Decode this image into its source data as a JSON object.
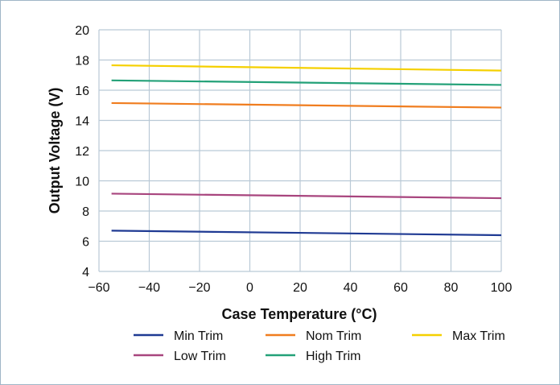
{
  "chart_data": {
    "type": "line",
    "xlabel": "Case Temperature (°C)",
    "ylabel": "Output Voltage (V)",
    "xlim": [
      -60,
      100
    ],
    "ylim": [
      4,
      20
    ],
    "x_ticks": [
      "−60",
      "−40",
      "−20",
      "0",
      "20",
      "40",
      "60",
      "80",
      "100"
    ],
    "y_ticks": [
      "4",
      "6",
      "8",
      "10",
      "12",
      "14",
      "16",
      "18",
      "20"
    ],
    "grid": true,
    "legend_position": "bottom",
    "x": [
      -55,
      100
    ],
    "series": [
      {
        "name": "Min Trim",
        "color": "#1f3a93",
        "values": [
          6.7,
          6.4
        ]
      },
      {
        "name": "Nom Trim",
        "color": "#f07d1f",
        "values": [
          15.15,
          14.85
        ]
      },
      {
        "name": "Max Trim",
        "color": "#f5d000",
        "values": [
          17.65,
          17.3
        ]
      },
      {
        "name": "Low Trim",
        "color": "#a8457e",
        "values": [
          9.15,
          8.85
        ]
      },
      {
        "name": "High Trim",
        "color": "#23a178",
        "values": [
          16.65,
          16.35
        ]
      }
    ]
  }
}
